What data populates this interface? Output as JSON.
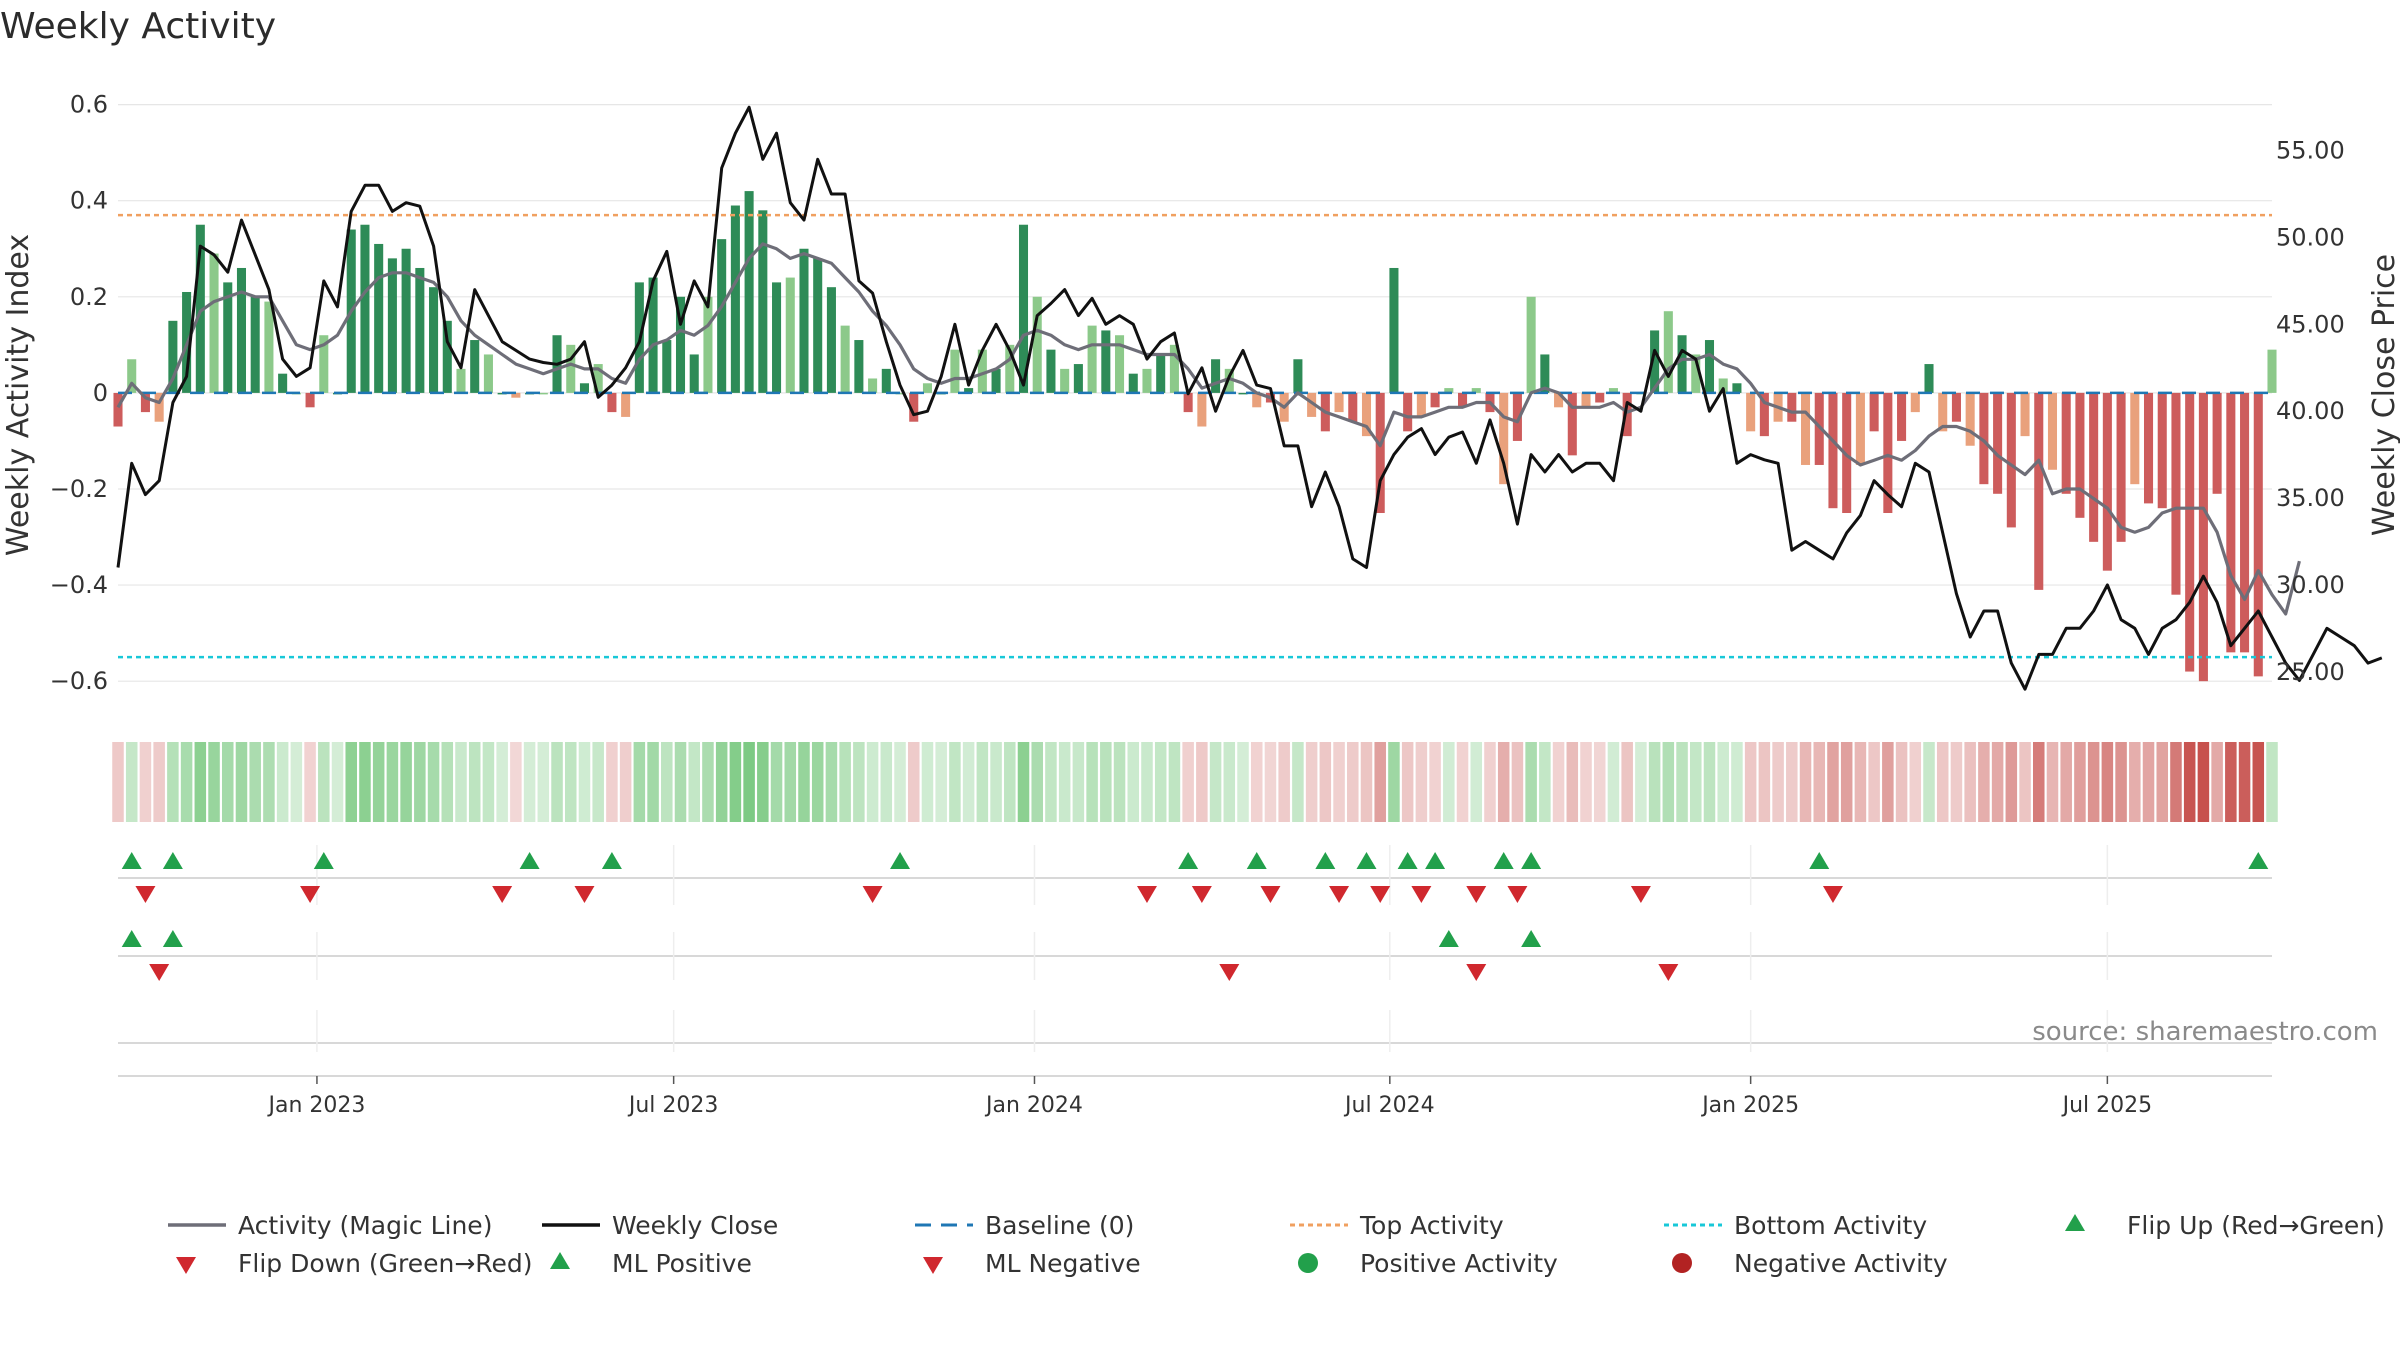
{
  "colors": {
    "pos_strong": "#2e8b57",
    "pos_light": "#8cc98a",
    "neg_strong": "#cd5c5c",
    "neg_light": "#e9a17c",
    "magic_line": "#6e6e78",
    "close_line": "#111111",
    "baseline": "#1f77b4",
    "top_line": "#f0a060",
    "bottom_line": "#18c8d8",
    "flip_up": "#22a04b",
    "flip_down": "#d0282e",
    "grid": "#e6e6e6"
  },
  "chart_data": {
    "type": "bar",
    "title": "Weekly Activity",
    "ylabel": "Weekly Activity Index",
    "y2label": "Weekly Close Price",
    "ylim": [
      -0.66,
      0.62
    ],
    "yticks": [
      0.6,
      0.4,
      0.2,
      0,
      -0.2,
      -0.4,
      -0.6
    ],
    "ytick_labels": [
      "0.6",
      "0.4",
      "0.2",
      "0",
      "−0.2",
      "−0.4",
      "−0.6"
    ],
    "y2lim": [
      22.8,
      58.2
    ],
    "y2ticks": [
      55,
      50,
      45,
      40,
      35,
      30,
      25
    ],
    "y2tick_labels": [
      "55.00",
      "50.00",
      "45.00",
      "40.00",
      "35.00",
      "30.00",
      "25.00"
    ],
    "x_range_weeks": [
      0,
      157
    ],
    "xticks": [
      {
        "week": 14.5,
        "label": "Jan 2023"
      },
      {
        "week": 40.5,
        "label": "Jul 2023"
      },
      {
        "week": 66.8,
        "label": "Jan 2024"
      },
      {
        "week": 92.7,
        "label": "Jul 2024"
      },
      {
        "week": 119,
        "label": "Jan 2025"
      },
      {
        "week": 145,
        "label": "Jul 2025"
      }
    ],
    "top_activity": 0.37,
    "bottom_activity": -0.55,
    "activity": [
      -0.07,
      0.07,
      -0.04,
      -0.06,
      0.15,
      0.21,
      0.35,
      0.29,
      0.23,
      0.26,
      0.2,
      0.19,
      0.04,
      0.0,
      -0.03,
      0.12,
      0.0,
      0.34,
      0.35,
      0.31,
      0.28,
      0.3,
      0.26,
      0.22,
      0.15,
      0.05,
      0.11,
      0.08,
      0.0,
      -0.01,
      0.0,
      0.0,
      0.12,
      0.1,
      0.02,
      0.06,
      -0.04,
      -0.05,
      0.23,
      0.24,
      0.11,
      0.2,
      0.08,
      0.2,
      0.32,
      0.39,
      0.42,
      0.38,
      0.23,
      0.24,
      0.3,
      0.28,
      0.22,
      0.14,
      0.11,
      0.03,
      0.05,
      0.0,
      -0.06,
      0.02,
      0.0,
      0.09,
      0.01,
      0.09,
      0.05,
      0.1,
      0.35,
      0.2,
      0.09,
      0.05,
      0.06,
      0.14,
      0.13,
      0.12,
      0.04,
      0.05,
      0.08,
      0.1,
      -0.04,
      -0.07,
      0.07,
      0.05,
      0.0,
      -0.03,
      -0.02,
      -0.06,
      0.07,
      -0.05,
      -0.08,
      -0.04,
      -0.06,
      -0.09,
      -0.25,
      0.26,
      -0.08,
      -0.05,
      -0.03,
      0.01,
      -0.03,
      0.01,
      -0.04,
      -0.19,
      -0.1,
      0.2,
      0.08,
      -0.03,
      -0.13,
      -0.03,
      -0.02,
      0.01,
      -0.09,
      0.0,
      0.13,
      0.17,
      0.12,
      0.08,
      0.11,
      0.03,
      0.02,
      -0.08,
      -0.09,
      -0.06,
      -0.06,
      -0.15,
      -0.15,
      -0.24,
      -0.25,
      -0.15,
      -0.08,
      -0.25,
      -0.1,
      -0.04,
      0.06,
      -0.08,
      -0.06,
      -0.11,
      -0.19,
      -0.21,
      -0.28,
      -0.09,
      -0.41,
      -0.16,
      -0.21,
      -0.26,
      -0.31,
      -0.37,
      -0.31,
      -0.19,
      -0.23,
      -0.24,
      -0.42,
      -0.58,
      -0.6,
      -0.21,
      -0.54,
      -0.54,
      -0.59,
      0.09
    ],
    "magic_line": [
      -0.03,
      0.02,
      -0.01,
      -0.02,
      0.03,
      0.1,
      0.17,
      0.19,
      0.2,
      0.21,
      0.2,
      0.2,
      0.15,
      0.1,
      0.09,
      0.1,
      0.12,
      0.17,
      0.21,
      0.24,
      0.25,
      0.25,
      0.24,
      0.23,
      0.2,
      0.15,
      0.12,
      0.1,
      0.08,
      0.06,
      0.05,
      0.04,
      0.05,
      0.06,
      0.05,
      0.05,
      0.03,
      0.02,
      0.07,
      0.1,
      0.11,
      0.13,
      0.12,
      0.14,
      0.18,
      0.23,
      0.28,
      0.31,
      0.3,
      0.28,
      0.29,
      0.28,
      0.27,
      0.24,
      0.21,
      0.17,
      0.14,
      0.1,
      0.05,
      0.03,
      0.02,
      0.03,
      0.03,
      0.04,
      0.05,
      0.07,
      0.12,
      0.13,
      0.12,
      0.1,
      0.09,
      0.1,
      0.1,
      0.1,
      0.09,
      0.08,
      0.08,
      0.08,
      0.05,
      0.01,
      0.02,
      0.03,
      0.02,
      0.0,
      -0.01,
      -0.03,
      0.0,
      -0.02,
      -0.04,
      -0.05,
      -0.06,
      -0.07,
      -0.11,
      -0.04,
      -0.05,
      -0.05,
      -0.04,
      -0.03,
      -0.03,
      -0.02,
      -0.02,
      -0.05,
      -0.06,
      0.0,
      0.01,
      0.0,
      -0.03,
      -0.03,
      -0.03,
      -0.02,
      -0.04,
      -0.03,
      0.01,
      0.05,
      0.07,
      0.07,
      0.08,
      0.06,
      0.05,
      0.02,
      -0.02,
      -0.03,
      -0.04,
      -0.04,
      -0.07,
      -0.1,
      -0.13,
      -0.15,
      -0.14,
      -0.13,
      -0.14,
      -0.12,
      -0.09,
      -0.07,
      -0.07,
      -0.08,
      -0.1,
      -0.13,
      -0.15,
      -0.17,
      -0.14,
      -0.21,
      -0.2,
      -0.2,
      -0.22,
      -0.24,
      -0.28,
      -0.29,
      -0.28,
      -0.25,
      -0.24,
      -0.24,
      -0.24,
      -0.29,
      -0.38,
      -0.43,
      -0.37,
      -0.42,
      -0.46,
      -0.35
    ],
    "weekly_close": [
      31.0,
      37.0,
      35.2,
      36.0,
      40.5,
      42.0,
      49.5,
      49.0,
      48.0,
      51.0,
      49.0,
      47.0,
      43.0,
      42.0,
      42.5,
      47.5,
      46.0,
      51.5,
      53.0,
      53.0,
      51.5,
      52.0,
      51.8,
      49.5,
      44.0,
      42.5,
      47.0,
      45.5,
      44.0,
      43.5,
      43.0,
      42.8,
      42.7,
      43.0,
      44.0,
      40.8,
      41.5,
      42.5,
      44.0,
      47.5,
      49.2,
      45.0,
      47.5,
      46.0,
      54.0,
      56.0,
      57.5,
      54.5,
      56.0,
      52.0,
      51.0,
      54.5,
      52.5,
      52.5,
      47.5,
      46.8,
      44.0,
      41.5,
      39.8,
      40.0,
      42.0,
      45.0,
      41.5,
      43.5,
      45.0,
      43.5,
      41.5,
      45.5,
      46.2,
      47.0,
      45.5,
      46.5,
      45.0,
      45.5,
      45.0,
      43.0,
      44.0,
      44.5,
      41.0,
      42.5,
      40.0,
      42.0,
      43.5,
      41.5,
      41.3,
      38.0,
      38.0,
      34.5,
      36.5,
      34.5,
      31.5,
      31.0,
      36.0,
      37.5,
      38.5,
      39.0,
      37.5,
      38.5,
      38.8,
      37.0,
      39.5,
      37.0,
      33.5,
      37.5,
      36.5,
      37.5,
      36.5,
      37.0,
      37.0,
      36.0,
      40.5,
      40.0,
      43.5,
      42.0,
      43.5,
      43.0,
      40.0,
      41.3,
      37.0,
      37.5,
      37.2,
      37.0,
      32.0,
      32.5,
      32.0,
      31.5,
      33.0,
      34.0,
      36.0,
      35.2,
      34.5,
      37.0,
      36.5,
      33.0,
      29.5,
      27.0,
      28.5,
      28.5,
      25.5,
      24.0,
      26.0,
      26.0,
      27.5,
      27.5,
      28.5,
      30.0,
      28.0,
      27.5,
      26.0,
      27.5,
      28.0,
      29.0,
      30.5,
      29.0,
      26.5,
      27.5,
      28.5,
      27.0,
      25.5,
      24.5,
      26.0,
      27.5,
      27.0,
      26.5,
      25.5,
      25.8
    ],
    "heat_strip": "intensity of weekly activity (colour follows activity)",
    "flip_up_weeks": [
      1,
      4,
      15,
      30,
      36,
      57,
      78,
      83,
      88,
      91,
      94,
      96,
      101,
      103,
      124,
      156
    ],
    "flip_down_weeks": [
      2,
      14,
      28,
      34,
      55,
      75,
      79,
      84,
      89,
      92,
      95,
      99,
      102,
      111,
      125
    ],
    "ml_positive_weeks": [
      1,
      4,
      97,
      103
    ],
    "ml_negative_weeks": [
      3,
      81,
      99,
      113
    ],
    "legend": [
      {
        "label": "Activity (Magic Line)",
        "type": "line",
        "color_key": "magic_line"
      },
      {
        "label": "Weekly Close",
        "type": "line",
        "color_key": "close_line"
      },
      {
        "label": "Baseline (0)",
        "type": "dashed",
        "color_key": "baseline"
      },
      {
        "label": "Top Activity",
        "type": "dotted",
        "color_key": "top_line"
      },
      {
        "label": "Bottom Activity",
        "type": "dotted",
        "color_key": "bottom_line"
      },
      {
        "label": "Flip Up (Red→Green)",
        "type": "triangle-up",
        "color_key": "flip_up"
      },
      {
        "label": "Flip Down (Green→Red)",
        "type": "triangle-down",
        "color_key": "flip_down"
      },
      {
        "label": "ML Positive",
        "type": "triangle-up",
        "color_key": "flip_up"
      },
      {
        "label": "ML Negative",
        "type": "triangle-down",
        "color_key": "flip_down"
      },
      {
        "label": "Positive Activity",
        "type": "circle",
        "color_key": "flip_up"
      },
      {
        "label": "Negative Activity",
        "type": "circle",
        "color_key": "neg_dot"
      }
    ],
    "source_note": "source: sharemaestro.com"
  }
}
